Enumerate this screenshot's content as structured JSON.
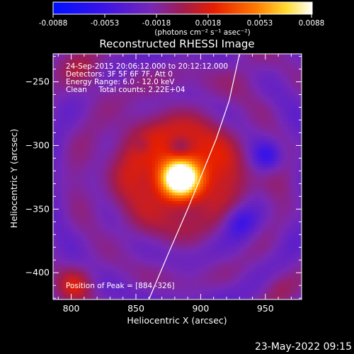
{
  "colorbar": {
    "ticks": [
      "-0.0088",
      "-0.0053",
      "-0.0018",
      "0.0018",
      "0.0053",
      "0.0088"
    ],
    "unit_label": "(photons cm⁻² s⁻¹ asec⁻²)"
  },
  "chart_data": {
    "type": "heatmap",
    "title": "Reconstructed RHESSI Image",
    "annotations": [
      "24-Sep-2015 20:06:12.000 to 20:12:12.000",
      "Detectors: 3F 5F 6F 7F, Att 0",
      "Energy Range: 6.0 - 12.0 keV",
      "Clean     Total counts: 2.22E+04"
    ],
    "peak_label": "Position of Peak = [884,-326]",
    "peak": [
      884,
      -326
    ],
    "xlabel": "Heliocentric X (arcsec)",
    "ylabel": "Heliocentric Y (arcsec)",
    "xlim": [
      786,
      978
    ],
    "ylim": [
      -421,
      -228
    ],
    "xticks": [
      800,
      850,
      900,
      950
    ],
    "yticks": [
      -250,
      -300,
      -350,
      -400
    ],
    "xtick_labels": [
      "800",
      "850",
      "900",
      "950"
    ],
    "ytick_labels": [
      "−250",
      "−300",
      "−350",
      "−400"
    ],
    "value_range": [
      -0.0088,
      0.0088
    ],
    "limb_curve": [
      [
        860,
        -421
      ],
      [
        875,
        -385
      ],
      [
        890,
        -350
      ],
      [
        900,
        -325
      ],
      [
        912,
        -295
      ],
      [
        922,
        -265
      ],
      [
        930,
        -228
      ]
    ],
    "sources": [
      {
        "x": 884,
        "y": -326,
        "amp": 0.0088,
        "sigma": 10
      },
      {
        "x": 875,
        "y": -320,
        "amp": 0.0048,
        "sigma": 32
      },
      {
        "x": 905,
        "y": -320,
        "amp": 0.0022,
        "sigma": 22
      },
      {
        "x": 803,
        "y": -410,
        "amp": 0.0036,
        "sigma": 10
      },
      {
        "x": 808,
        "y": -240,
        "amp": 0.0024,
        "sigma": 12
      },
      {
        "x": 935,
        "y": -240,
        "amp": 0.0012,
        "sigma": 14
      },
      {
        "x": 955,
        "y": -330,
        "amp": 0.001,
        "sigma": 10
      },
      {
        "x": 960,
        "y": -412,
        "amp": 0.0016,
        "sigma": 10
      },
      {
        "x": 952,
        "y": -308,
        "amp": -0.0032,
        "sigma": 8
      },
      {
        "x": 930,
        "y": -360,
        "amp": -0.0028,
        "sigma": 9
      },
      {
        "x": 884,
        "y": -302,
        "amp": -0.002,
        "sigma": 6
      },
      {
        "x": 855,
        "y": -300,
        "amp": -0.0014,
        "sigma": 5
      }
    ]
  },
  "timestamp": "23-May-2022 09:15"
}
